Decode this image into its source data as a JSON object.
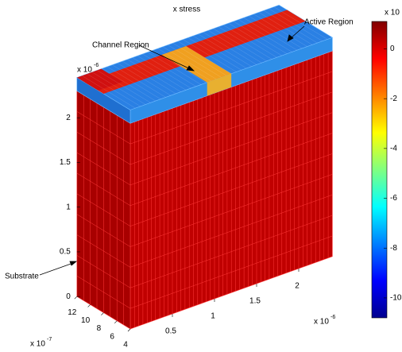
{
  "chart_data": {
    "type": "fem3d",
    "title": "x stress",
    "annotations": [
      "Channel Region",
      "Active Region",
      "Substrate"
    ],
    "x_exponent": {
      "base": "x 10",
      "power": "-6"
    },
    "y_exponent": {
      "base": "x 10",
      "power": "-7"
    },
    "z_exponent": {
      "base": "x 10",
      "power": "-6"
    },
    "colorbar_exponent": "x 10",
    "xlim": [
      0,
      2.4
    ],
    "xticks": [
      0.5,
      1,
      1.5,
      2
    ],
    "ylim": [
      4,
      12
    ],
    "yticks": [
      4,
      6,
      8,
      10,
      12
    ],
    "zlim": [
      0,
      2.3
    ],
    "zticks": [
      0,
      0.5,
      1,
      1.5,
      2
    ],
    "clim": [
      -10.8,
      1.1
    ],
    "cticks": [
      -10,
      -8,
      -6,
      -4,
      -2,
      0
    ],
    "colormap": "jet"
  }
}
